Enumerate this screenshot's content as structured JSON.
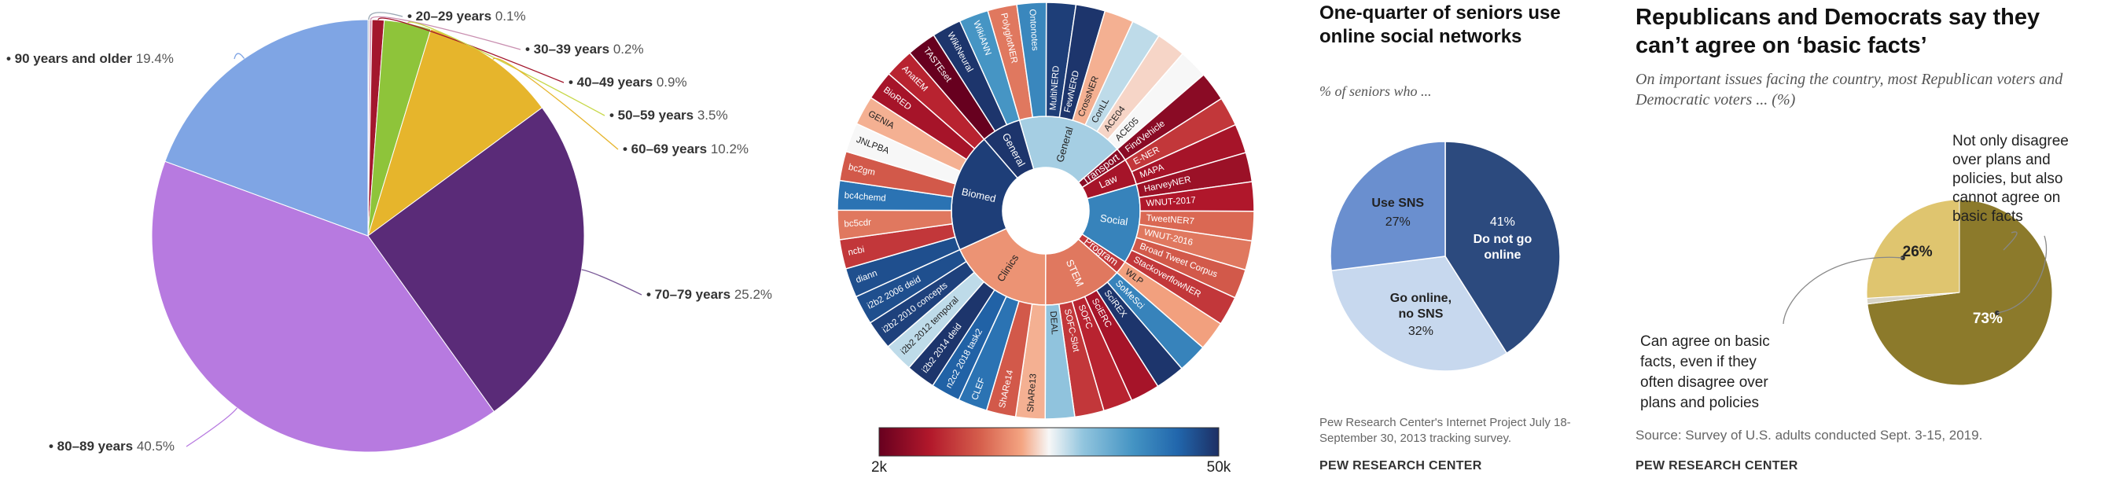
{
  "chart_data": [
    {
      "type": "pie",
      "slices": [
        {
          "label": "20–29 years",
          "pct_label": "0.1%",
          "value": 0.1,
          "color": "#9aa7b4"
        },
        {
          "label": "30–39 years",
          "pct_label": "0.2%",
          "value": 0.2,
          "color": "#d9a5c0"
        },
        {
          "label": "40–49 years",
          "pct_label": "0.9%",
          "value": 0.9,
          "color": "#a3172d"
        },
        {
          "label": "50–59 years",
          "pct_label": "3.5%",
          "value": 3.5,
          "color": "#8ec43a"
        },
        {
          "label": "60–69 years",
          "pct_label": "10.2%",
          "value": 10.2,
          "color": "#e6b52c"
        },
        {
          "label": "70–79 years",
          "pct_label": "25.2%",
          "value": 25.2,
          "color": "#5a2b78"
        },
        {
          "label": "80–89 years",
          "pct_label": "40.5%",
          "value": 40.5,
          "color": "#b77ae0"
        },
        {
          "label": "90 years and older",
          "pct_label": "19.4%",
          "value": 19.4,
          "color": "#7fa5e4"
        }
      ]
    },
    {
      "type": "sunburst",
      "colorbar": {
        "min_label": "2k",
        "max_label": "50k",
        "min": 2000,
        "max": 50000
      },
      "groups": [
        {
          "name": "General",
          "value": 13000,
          "children": [
            {
              "name": "PolyglotNER",
              "value": 6000
            },
            {
              "name": "Ontonotes",
              "value": 25000
            },
            {
              "name": "MultiNERD",
              "value": 45000
            },
            {
              "name": "FewNERD",
              "value": 48000
            },
            {
              "name": "CrossNER",
              "value": 8000
            },
            {
              "name": "ConLL",
              "value": 12000
            },
            {
              "name": "ACE04",
              "value": 9000
            },
            {
              "name": "ACE05",
              "value": 10000
            }
          ]
        },
        {
          "name": "Transport",
          "value": 2500,
          "children": [
            {
              "name": "FindVehicle",
              "value": 2500
            }
          ]
        },
        {
          "name": "Law",
          "value": 3000,
          "children": [
            {
              "name": "E-NER",
              "value": 4000
            },
            {
              "name": "MAPA",
              "value": 3000
            }
          ]
        },
        {
          "name": "Social",
          "value": 26000,
          "children": [
            {
              "name": "HarveyNER",
              "value": 2800
            },
            {
              "name": "WNUT-2017",
              "value": 3200
            },
            {
              "name": "TweetNER7",
              "value": 5500
            },
            {
              "name": "WNUT-2016",
              "value": 6000
            },
            {
              "name": "Broad Tweet Corpus",
              "value": 5000
            },
            {
              "name": "StackoverflowNER",
              "value": 4000
            }
          ]
        },
        {
          "name": "Program",
          "value": 4000,
          "children": [
            {
              "name": "WLP",
              "value": 7500
            }
          ]
        },
        {
          "name": "STEM",
          "value": 6000,
          "children": [
            {
              "name": "SoMeSci",
              "value": 26000
            },
            {
              "name": "SciREX",
              "value": 48000
            },
            {
              "name": "SciERC",
              "value": 3000
            },
            {
              "name": "SOFC",
              "value": 3500
            },
            {
              "name": "SOFC-Slot",
              "value": 4000
            },
            {
              "name": "DEAL",
              "value": 14000
            }
          ]
        },
        {
          "name": "Clinics",
          "value": 7000,
          "children": [
            {
              "name": "ShARe13",
              "value": 8000
            },
            {
              "name": "ShARe14",
              "value": 5000
            },
            {
              "name": "CLEF",
              "value": 30000
            },
            {
              "name": "n2c2 2018 task2",
              "value": 35000
            },
            {
              "name": "i2b2 2014 deid",
              "value": 48000
            },
            {
              "name": "i2b2 2012 temporal",
              "value": 12000
            },
            {
              "name": "i2b2 2010 concepts",
              "value": 44000
            },
            {
              "name": "i2b2 2006 deid",
              "value": 40000
            }
          ]
        },
        {
          "name": "Biomed",
          "value": 45000,
          "children": [
            {
              "name": "diann",
              "value": 40000
            },
            {
              "name": "ncbi",
              "value": 4000
            },
            {
              "name": "bc5cdr",
              "value": 6000
            },
            {
              "name": "bc4chemd",
              "value": 30000
            },
            {
              "name": "bc2gm",
              "value": 5000
            },
            {
              "name": "JNLPBA",
              "value": 10000
            },
            {
              "name": "GENIA",
              "value": 8000
            },
            {
              "name": "BioRED",
              "value": 3000
            },
            {
              "name": "AnatEM",
              "value": 3500
            }
          ]
        },
        {
          "name": "General",
          "value": 48000,
          "children": [
            {
              "name": "TASTEset",
              "value": 2000
            },
            {
              "name": "WikiNeural",
              "value": 48000
            },
            {
              "name": "WikiANN",
              "value": 22000
            }
          ]
        }
      ]
    },
    {
      "type": "pie",
      "title": "One-quarter of seniors use online social networks",
      "subtitle": "% of seniors who ...",
      "slices": [
        {
          "label": "Do not go online",
          "pct_label": "41%",
          "value": 41,
          "color": "#2c4a7e"
        },
        {
          "label": "Go online, no SNS",
          "pct_label": "32%",
          "value": 32,
          "color": "#c7d8ee"
        },
        {
          "label": "Use SNS",
          "pct_label": "27%",
          "value": 27,
          "color": "#6a8fcf"
        }
      ],
      "note": "Pew Research Center's Internet Project July 18-September 30, 2013 tracking survey.",
      "brand": "PEW RESEARCH CENTER"
    },
    {
      "type": "pie",
      "title": "Republicans and Democrats say they can’t agree on ‘basic facts’",
      "subtitle": "On important issues facing the country, most Republican voters and Democratic voters ... (%)",
      "slices": [
        {
          "label": "Not only disagree over plans and policies, but also cannot agree on basic facts",
          "pct_label": "73%",
          "value": 73,
          "color": "#8c7a2b"
        },
        {
          "label": "",
          "pct_label": "",
          "value": 1,
          "color": "#d8d4c6"
        },
        {
          "label": "Can agree on basic facts, even if they often disagree over plans and policies",
          "pct_label": "26%",
          "value": 26,
          "color": "#dfc56f"
        }
      ],
      "note": "Source: Survey of U.S. adults conducted Sept. 3-15, 2019.",
      "brand": "PEW RESEARCH CENTER"
    }
  ]
}
